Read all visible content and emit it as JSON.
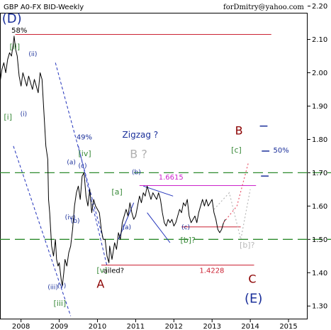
{
  "chart_data": {
    "type": "line",
    "title": "GBP A0-FX BID-Weekly",
    "credit": "forDmitry@yahoo.com",
    "x_tick_labels": [
      "2008",
      "2009",
      "2010",
      "2011",
      "2012",
      "2013",
      "2014",
      "2015"
    ],
    "x_ticks": [
      2008.0,
      2009.0,
      2010.0,
      2011.0,
      2012.0,
      2013.0,
      2014.0,
      2015.0
    ],
    "xlim": [
      2007.45,
      2015.5
    ],
    "ylim": [
      1.26,
      2.18
    ],
    "y_ticks": [
      2.2,
      2.1,
      2.0,
      1.9,
      1.8,
      1.7,
      1.6,
      1.5,
      1.4,
      1.3
    ],
    "y_tick_labels": [
      "2.20",
      "2.10",
      "2.00",
      "1.90",
      "1.80",
      "1.70",
      "1.60",
      "1.50",
      "1.40",
      "1.30"
    ],
    "grid": false,
    "series": [
      {
        "color": "#000000",
        "points": [
          [
            2007.45,
            1.97
          ],
          [
            2007.5,
            2.01
          ],
          [
            2007.55,
            2.03
          ],
          [
            2007.6,
            2.0
          ],
          [
            2007.65,
            2.04
          ],
          [
            2007.7,
            2.06
          ],
          [
            2007.75,
            2.05
          ],
          [
            2007.8,
            2.09
          ],
          [
            2007.82,
            2.11
          ],
          [
            2007.86,
            2.07
          ],
          [
            2007.9,
            2.05
          ],
          [
            2007.95,
            1.99
          ],
          [
            2008.0,
            1.96
          ],
          [
            2008.05,
            2.0
          ],
          [
            2008.1,
            1.98
          ],
          [
            2008.15,
            1.96
          ],
          [
            2008.2,
            1.99
          ],
          [
            2008.25,
            1.97
          ],
          [
            2008.3,
            1.95
          ],
          [
            2008.35,
            1.98
          ],
          [
            2008.4,
            1.96
          ],
          [
            2008.45,
            1.94
          ],
          [
            2008.5,
            2.0
          ],
          [
            2008.55,
            1.98
          ],
          [
            2008.6,
            1.88
          ],
          [
            2008.65,
            1.78
          ],
          [
            2008.7,
            1.74
          ],
          [
            2008.72,
            1.62
          ],
          [
            2008.75,
            1.58
          ],
          [
            2008.8,
            1.48
          ],
          [
            2008.85,
            1.45
          ],
          [
            2008.9,
            1.5
          ],
          [
            2008.93,
            1.44
          ],
          [
            2008.97,
            1.42
          ],
          [
            2009.0,
            1.43
          ],
          [
            2009.05,
            1.38
          ],
          [
            2009.08,
            1.36
          ],
          [
            2009.12,
            1.4
          ],
          [
            2009.15,
            1.44
          ],
          [
            2009.2,
            1.42
          ],
          [
            2009.25,
            1.46
          ],
          [
            2009.3,
            1.48
          ],
          [
            2009.35,
            1.53
          ],
          [
            2009.4,
            1.6
          ],
          [
            2009.45,
            1.64
          ],
          [
            2009.5,
            1.66
          ],
          [
            2009.55,
            1.62
          ],
          [
            2009.6,
            1.69
          ],
          [
            2009.65,
            1.7
          ],
          [
            2009.7,
            1.63
          ],
          [
            2009.75,
            1.6
          ],
          [
            2009.8,
            1.65
          ],
          [
            2009.85,
            1.58
          ],
          [
            2009.9,
            1.62
          ],
          [
            2009.95,
            1.6
          ],
          [
            2010.0,
            1.59
          ],
          [
            2010.05,
            1.58
          ],
          [
            2010.1,
            1.53
          ],
          [
            2010.15,
            1.5
          ],
          [
            2010.2,
            1.5
          ],
          [
            2010.25,
            1.45
          ],
          [
            2010.3,
            1.43
          ],
          [
            2010.32,
            1.48
          ],
          [
            2010.38,
            1.44
          ],
          [
            2010.45,
            1.49
          ],
          [
            2010.5,
            1.47
          ],
          [
            2010.55,
            1.52
          ],
          [
            2010.6,
            1.5
          ],
          [
            2010.65,
            1.55
          ],
          [
            2010.7,
            1.57
          ],
          [
            2010.75,
            1.59
          ],
          [
            2010.8,
            1.57
          ],
          [
            2010.85,
            1.61
          ],
          [
            2010.9,
            1.58
          ],
          [
            2010.95,
            1.56
          ],
          [
            2011.0,
            1.57
          ],
          [
            2011.05,
            1.6
          ],
          [
            2011.1,
            1.63
          ],
          [
            2011.15,
            1.61
          ],
          [
            2011.2,
            1.64
          ],
          [
            2011.25,
            1.63
          ],
          [
            2011.3,
            1.66
          ],
          [
            2011.35,
            1.64
          ],
          [
            2011.4,
            1.62
          ],
          [
            2011.45,
            1.64
          ],
          [
            2011.5,
            1.63
          ],
          [
            2011.55,
            1.62
          ],
          [
            2011.6,
            1.64
          ],
          [
            2011.65,
            1.62
          ],
          [
            2011.7,
            1.58
          ],
          [
            2011.75,
            1.55
          ],
          [
            2011.8,
            1.54
          ],
          [
            2011.85,
            1.56
          ],
          [
            2011.9,
            1.55
          ],
          [
            2011.95,
            1.56
          ],
          [
            2012.0,
            1.54
          ],
          [
            2012.05,
            1.55
          ],
          [
            2012.1,
            1.57
          ],
          [
            2012.15,
            1.59
          ],
          [
            2012.2,
            1.58
          ],
          [
            2012.25,
            1.61
          ],
          [
            2012.3,
            1.6
          ],
          [
            2012.35,
            1.62
          ],
          [
            2012.4,
            1.57
          ],
          [
            2012.45,
            1.55
          ],
          [
            2012.5,
            1.56
          ],
          [
            2012.55,
            1.57
          ],
          [
            2012.6,
            1.55
          ],
          [
            2012.65,
            1.58
          ],
          [
            2012.7,
            1.6
          ],
          [
            2012.75,
            1.62
          ],
          [
            2012.8,
            1.6
          ],
          [
            2012.85,
            1.62
          ],
          [
            2012.9,
            1.6
          ],
          [
            2012.95,
            1.61
          ],
          [
            2013.0,
            1.62
          ],
          [
            2013.05,
            1.58
          ],
          [
            2013.1,
            1.56
          ],
          [
            2013.15,
            1.53
          ],
          [
            2013.2,
            1.52
          ],
          [
            2013.25,
            1.53
          ],
          [
            2013.3,
            1.55
          ],
          [
            2013.35,
            1.56
          ]
        ]
      }
    ],
    "horizontal_lines": [
      {
        "y": 2.115,
        "x": [
          2007.85,
          2014.55
        ],
        "color": "#cc2233"
      },
      {
        "y": 1.6615,
        "x": [
          2011.1,
          2014.15
        ],
        "color": "#cc22cc"
      },
      {
        "y": 1.5375,
        "x": [
          2012.2,
          2013.75
        ],
        "color": "#cc2233"
      },
      {
        "y": 1.4228,
        "x": [
          2010.1,
          2014.1
        ],
        "color": "#cc2233"
      }
    ],
    "dashed_levels": [
      {
        "y": 1.7,
        "color": "#2e8b2e",
        "label": ""
      },
      {
        "y": 1.5,
        "color": "#2e8b2e",
        "label": ""
      }
    ],
    "trend_channels": [
      {
        "points": [
          [
            2008.9,
            2.03
          ],
          [
            2010.15,
            1.5
          ]
        ],
        "color": "#2233bb",
        "style": "dashed"
      },
      {
        "points": [
          [
            2007.8,
            1.78
          ],
          [
            2009.3,
            1.27
          ]
        ],
        "color": "#2233bb",
        "style": "dashed"
      },
      {
        "points": [
          [
            2009.5,
            1.78
          ],
          [
            2010.25,
            1.42
          ]
        ],
        "color": "#2233bb",
        "style": "dashed"
      },
      {
        "points": [
          [
            2011.2,
            1.66
          ],
          [
            2011.98,
            1.63
          ]
        ],
        "color": "#2233bb",
        "style": "solid"
      },
      {
        "points": [
          [
            2011.3,
            1.58
          ],
          [
            2011.9,
            1.49
          ]
        ],
        "color": "#2233bb",
        "style": "solid"
      },
      {
        "points": [
          [
            2010.55,
            1.5
          ],
          [
            2010.95,
            1.61
          ]
        ],
        "color": "#2233bb",
        "style": "solid"
      }
    ],
    "forecast_paths": [
      {
        "points": [
          [
            2013.3,
            1.55
          ],
          [
            2013.65,
            1.6
          ],
          [
            2013.95,
            1.73
          ]
        ],
        "color": "#e8556a",
        "style": "dotted"
      },
      {
        "points": [
          [
            2013.05,
            1.59
          ],
          [
            2013.45,
            1.64
          ],
          [
            2013.75,
            1.5
          ],
          [
            2014.0,
            1.65
          ]
        ],
        "color": "#b8b8b8",
        "style": "dotted"
      }
    ],
    "side_markers": [
      {
        "y": 1.84,
        "x": [
          2014.25,
          2014.45
        ],
        "color": "#1a2f9a"
      },
      {
        "y": 1.765,
        "x": [
          2014.3,
          2014.5
        ],
        "color": "#1a2f9a"
      },
      {
        "y": 1.69,
        "x": [
          2014.28,
          2014.48
        ],
        "color": "#1a2f9a"
      }
    ],
    "annotations": [
      {
        "text": "(D)",
        "x": 2007.5,
        "y": 2.15,
        "color": "#1a2f9a",
        "size": 18
      },
      {
        "text": "58%",
        "x": 2007.75,
        "y": 2.12,
        "color": "#000000",
        "size": 10
      },
      {
        "text": "[ii]",
        "x": 2007.7,
        "y": 2.07,
        "color": "#3a8a3a",
        "size": 11
      },
      {
        "text": "(ii)",
        "x": 2008.2,
        "y": 2.05,
        "color": "#1a2f9a",
        "size": 9
      },
      {
        "text": "[i]",
        "x": 2007.55,
        "y": 1.86,
        "color": "#3a8a3a",
        "size": 11
      },
      {
        "text": "(i)",
        "x": 2007.98,
        "y": 1.87,
        "color": "#1a2f9a",
        "size": 9
      },
      {
        "text": "49%",
        "x": 2009.45,
        "y": 1.8,
        "color": "#1a2f9a",
        "size": 10
      },
      {
        "text": "[iv]",
        "x": 2009.5,
        "y": 1.75,
        "color": "#3a8a3a",
        "size": 11
      },
      {
        "text": "(a)",
        "x": 2009.2,
        "y": 1.725,
        "color": "#1a2f9a",
        "size": 9
      },
      {
        "text": "(c)",
        "x": 2009.5,
        "y": 1.715,
        "color": "#1a2f9a",
        "size": 9
      },
      {
        "text": "(b)",
        "x": 2009.3,
        "y": 1.55,
        "color": "#1a2f9a",
        "size": 9
      },
      {
        "text": "(iv)",
        "x": 2009.15,
        "y": 1.56,
        "color": "#1a2f9a",
        "size": 9
      },
      {
        "text": "(iii)",
        "x": 2008.7,
        "y": 1.35,
        "color": "#1a2f9a",
        "size": 9
      },
      {
        "text": "(v)",
        "x": 2008.95,
        "y": 1.355,
        "color": "#1a2f9a",
        "size": 9
      },
      {
        "text": "[iii]",
        "x": 2008.85,
        "y": 1.3,
        "color": "#3a8a3a",
        "size": 11
      },
      {
        "text": "[v]",
        "x": 2009.98,
        "y": 1.4,
        "color": "#3a8a3a",
        "size": 11
      },
      {
        "text": "ailed?",
        "x": 2010.15,
        "y": 1.4,
        "color": "#000000",
        "size": 10
      },
      {
        "text": "A",
        "x": 2009.98,
        "y": 1.355,
        "color": "#8b0000",
        "size": 16
      },
      {
        "text": "Zigzag ?",
        "x": 2010.65,
        "y": 1.805,
        "color": "#1a2f9a",
        "size": 12
      },
      {
        "text": "B ?",
        "x": 2010.85,
        "y": 1.745,
        "color": "#b0b0b0",
        "size": 16
      },
      {
        "text": "[a]",
        "x": 2010.37,
        "y": 1.635,
        "color": "#3a8a3a",
        "size": 11
      },
      {
        "text": "(b)",
        "x": 2010.9,
        "y": 1.695,
        "color": "#1a2f9a",
        "size": 9
      },
      {
        "text": "(a)",
        "x": 2010.65,
        "y": 1.53,
        "color": "#1a2f9a",
        "size": 9
      },
      {
        "text": "(c)",
        "x": 2012.2,
        "y": 1.53,
        "color": "#1a2f9a",
        "size": 9
      },
      {
        "text": "1.6615",
        "x": 2011.6,
        "y": 1.68,
        "color": "#cc22cc",
        "size": 10
      },
      {
        "text": "[b]?",
        "x": 2012.17,
        "y": 1.49,
        "color": "#3a8a3a",
        "size": 11
      },
      {
        "text": "1.4228",
        "x": 2012.67,
        "y": 1.4,
        "color": "#cc2233",
        "size": 10
      },
      {
        "text": "B",
        "x": 2013.6,
        "y": 1.815,
        "color": "#8b0000",
        "size": 16
      },
      {
        "text": "[c]",
        "x": 2013.5,
        "y": 1.76,
        "color": "#3a8a3a",
        "size": 11
      },
      {
        "text": "50%",
        "x": 2014.6,
        "y": 1.76,
        "color": "#1a2f9a",
        "size": 10
      },
      {
        "text": "[b]?",
        "x": 2013.72,
        "y": 1.475,
        "color": "#b8b8b8",
        "size": 11
      },
      {
        "text": "C",
        "x": 2013.95,
        "y": 1.37,
        "color": "#8b0000",
        "size": 16
      },
      {
        "text": "(E)",
        "x": 2013.85,
        "y": 1.31,
        "color": "#1a2f9a",
        "size": 18
      }
    ]
  }
}
